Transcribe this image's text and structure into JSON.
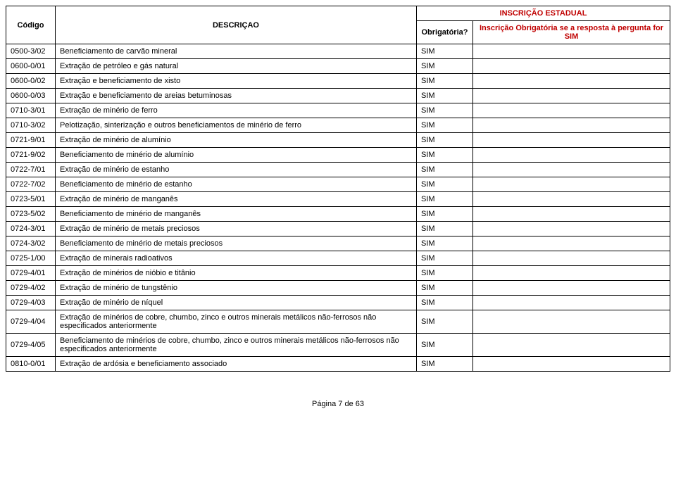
{
  "header": {
    "codigo": "Código",
    "descricao": "DESCRIÇAO",
    "obrigatoria": "Obrigatória?",
    "inscricao_estadual": "INSCRIÇÃO ESTADUAL",
    "inscricao_obrig": "Inscrição Obrigatória se a resposta à pergunta for SIM"
  },
  "rows": [
    {
      "codigo": "0500-3/02",
      "desc": "Beneficiamento de carvão mineral",
      "obrig": "SIM",
      "insc": ""
    },
    {
      "codigo": "0600-0/01",
      "desc": "Extração de petróleo e gás natural",
      "obrig": "SIM",
      "insc": ""
    },
    {
      "codigo": "0600-0/02",
      "desc": "Extração e beneficiamento de xisto",
      "obrig": "SIM",
      "insc": ""
    },
    {
      "codigo": "0600-0/03",
      "desc": "Extração e beneficiamento de areias betuminosas",
      "obrig": "SIM",
      "insc": ""
    },
    {
      "codigo": "0710-3/01",
      "desc": "Extração de minério de ferro",
      "obrig": "SIM",
      "insc": ""
    },
    {
      "codigo": "0710-3/02",
      "desc": "Pelotização, sinterização e outros beneficiamentos de minério de ferro",
      "obrig": "SIM",
      "insc": ""
    },
    {
      "codigo": "0721-9/01",
      "desc": "Extração de minério de alumínio",
      "obrig": "SIM",
      "insc": ""
    },
    {
      "codigo": "0721-9/02",
      "desc": "Beneficiamento de minério de alumínio",
      "obrig": "SIM",
      "insc": ""
    },
    {
      "codigo": "0722-7/01",
      "desc": "Extração de minério de estanho",
      "obrig": "SIM",
      "insc": ""
    },
    {
      "codigo": "0722-7/02",
      "desc": "Beneficiamento de minério de estanho",
      "obrig": "SIM",
      "insc": ""
    },
    {
      "codigo": "0723-5/01",
      "desc": "Extração de minério de manganês",
      "obrig": "SIM",
      "insc": ""
    },
    {
      "codigo": "0723-5/02",
      "desc": "Beneficiamento de minério de manganês",
      "obrig": "SIM",
      "insc": ""
    },
    {
      "codigo": "0724-3/01",
      "desc": "Extração de minério de metais preciosos",
      "obrig": "SIM",
      "insc": ""
    },
    {
      "codigo": "0724-3/02",
      "desc": "Beneficiamento de minério de metais preciosos",
      "obrig": "SIM",
      "insc": ""
    },
    {
      "codigo": "0725-1/00",
      "desc": "Extração de minerais radioativos",
      "obrig": "SIM",
      "insc": ""
    },
    {
      "codigo": "0729-4/01",
      "desc": "Extração de minérios de nióbio e titânio",
      "obrig": "SIM",
      "insc": ""
    },
    {
      "codigo": "0729-4/02",
      "desc": "Extração de minério de tungstênio",
      "obrig": "SIM",
      "insc": ""
    },
    {
      "codigo": "0729-4/03",
      "desc": "Extração de minério de níquel",
      "obrig": "SIM",
      "insc": ""
    },
    {
      "codigo": "0729-4/04",
      "desc": "Extração de minérios de cobre, chumbo, zinco e outros minerais metálicos não-ferrosos não especificados anteriormente",
      "obrig": "SIM",
      "insc": ""
    },
    {
      "codigo": "0729-4/05",
      "desc": "Beneficiamento de minérios de cobre, chumbo, zinco e outros minerais metálicos não-ferrosos não especificados anteriormente",
      "obrig": "SIM",
      "insc": ""
    },
    {
      "codigo": "0810-0/01",
      "desc": "Extração de ardósia e beneficiamento associado",
      "obrig": "SIM",
      "insc": ""
    }
  ],
  "footer": "Página 7 de 63"
}
